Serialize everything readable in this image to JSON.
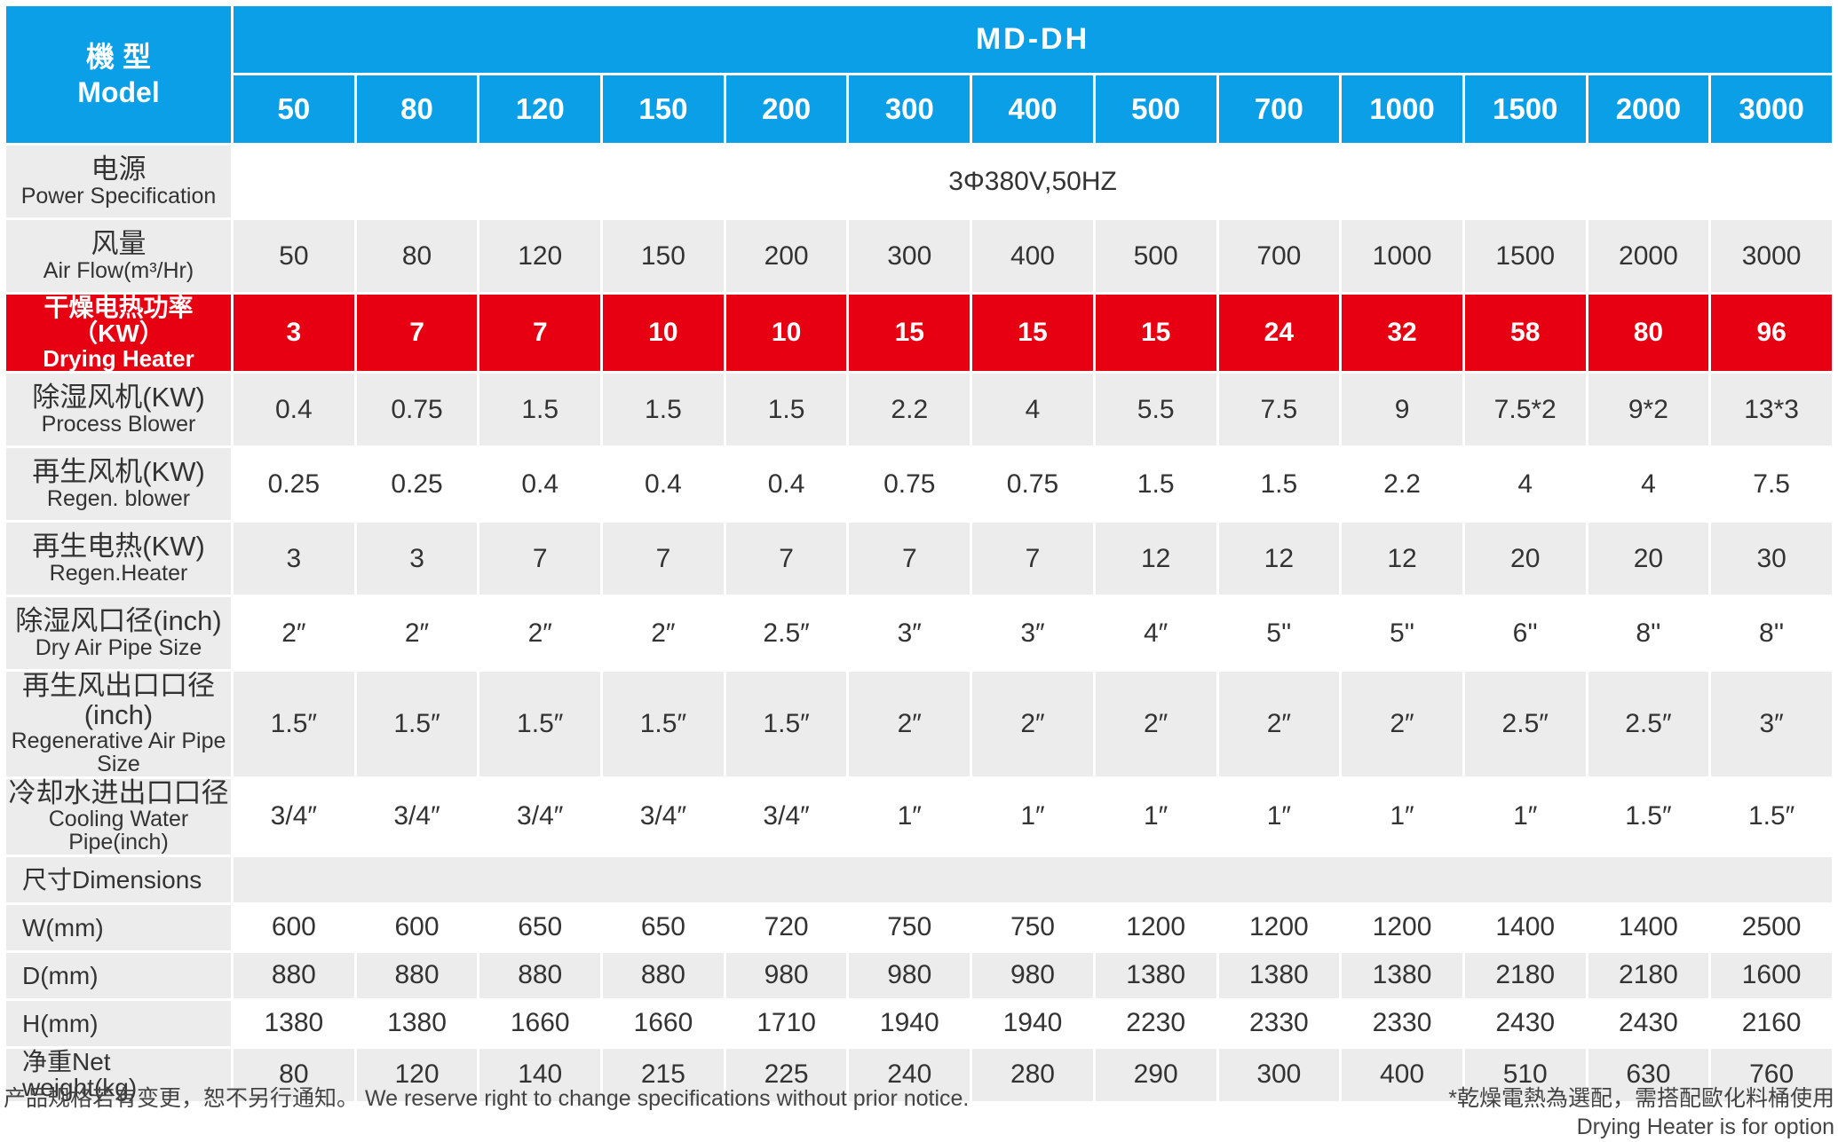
{
  "header": {
    "model_cn": "機 型",
    "model_en": "Model",
    "series": "MD-DH",
    "models": [
      "50",
      "80",
      "120",
      "150",
      "200",
      "300",
      "400",
      "500",
      "700",
      "1000",
      "1500",
      "2000",
      "3000"
    ]
  },
  "rows": [
    {
      "label": [
        "电源",
        "Power Specification"
      ],
      "span": "3Φ380V,50HZ"
    },
    {
      "label": [
        "风量",
        "Air Flow(m³/Hr)"
      ],
      "cells": [
        "50",
        "80",
        "120",
        "150",
        "200",
        "300",
        "400",
        "500",
        "700",
        "1000",
        "1500",
        "2000",
        "3000"
      ]
    },
    {
      "label": [
        "干燥电热功率（KW）",
        "Drying Heater"
      ],
      "highlight": true,
      "cells": [
        "3",
        "7",
        "7",
        "10",
        "10",
        "15",
        "15",
        "15",
        "24",
        "32",
        "58",
        "80",
        "96"
      ]
    },
    {
      "label": [
        "除湿风机(KW)",
        "Process Blower"
      ],
      "cells": [
        "0.4",
        "0.75",
        "1.5",
        "1.5",
        "1.5",
        "2.2",
        "4",
        "5.5",
        "7.5",
        "9",
        "7.5*2",
        "9*2",
        "13*3"
      ]
    },
    {
      "label": [
        "再生风机(KW)",
        "Regen. blower"
      ],
      "cells": [
        "0.25",
        "0.25",
        "0.4",
        "0.4",
        "0.4",
        "0.75",
        "0.75",
        "1.5",
        "1.5",
        "2.2",
        "4",
        "4",
        "7.5"
      ]
    },
    {
      "label": [
        "再生电热(KW)",
        "Regen.Heater"
      ],
      "cells": [
        "3",
        "3",
        "7",
        "7",
        "7",
        "7",
        "7",
        "12",
        "12",
        "12",
        "20",
        "20",
        "30"
      ]
    },
    {
      "label": [
        "除湿风口径(inch)",
        "Dry Air Pipe Size"
      ],
      "cells": [
        "2″",
        "2″",
        "2″",
        "2″",
        "2.5″",
        "3″",
        "3″",
        "4″",
        "5''",
        "5''",
        "6''",
        "8''",
        "8''"
      ]
    },
    {
      "label": [
        "再生风出口口径(inch)",
        "Regenerative Air Pipe Size"
      ],
      "cells": [
        "1.5″",
        "1.5″",
        "1.5″",
        "1.5″",
        "1.5″",
        "2″",
        "2″",
        "2″",
        "2″",
        "2″",
        "2.5″",
        "2.5″",
        "3″"
      ]
    },
    {
      "label": [
        "冷却水进出口口径",
        "Cooling Water Pipe(inch)"
      ],
      "cells": [
        "3/4″",
        "3/4″",
        "3/4″",
        "3/4″",
        "3/4″",
        "1″",
        "1″",
        "1″",
        "1″",
        "1″",
        "1″",
        "1.5″",
        "1.5″"
      ]
    },
    {
      "label": [
        "尺寸Dimensions"
      ],
      "small": true,
      "blank": true
    },
    {
      "label": [
        "W(mm)"
      ],
      "small": true,
      "cells": [
        "600",
        "600",
        "650",
        "650",
        "720",
        "750",
        "750",
        "1200",
        "1200",
        "1200",
        "1400",
        "1400",
        "2500"
      ]
    },
    {
      "label": [
        "D(mm)"
      ],
      "small": true,
      "cells": [
        "880",
        "880",
        "880",
        "880",
        "980",
        "980",
        "980",
        "1380",
        "1380",
        "1380",
        "2180",
        "2180",
        "1600"
      ]
    },
    {
      "label": [
        "H(mm)"
      ],
      "small": true,
      "cells": [
        "1380",
        "1380",
        "1660",
        "1660",
        "1710",
        "1940",
        "1940",
        "2230",
        "2330",
        "2330",
        "2430",
        "2430",
        "2160"
      ]
    },
    {
      "label": [
        "净重Net weight(kg)"
      ],
      "small": true,
      "cells": [
        "80",
        "120",
        "140",
        "215",
        "225",
        "240",
        "280",
        "290",
        "300",
        "400",
        "510",
        "630",
        "760"
      ]
    }
  ],
  "footer": {
    "note": "产品规格若有变更，恕不另行通知。 We reserve right to change specifications without prior notice.",
    "option_cn": "*乾燥電熱為選配，需搭配歐化料桶使用",
    "option_en": "Drying Heater is for option"
  }
}
